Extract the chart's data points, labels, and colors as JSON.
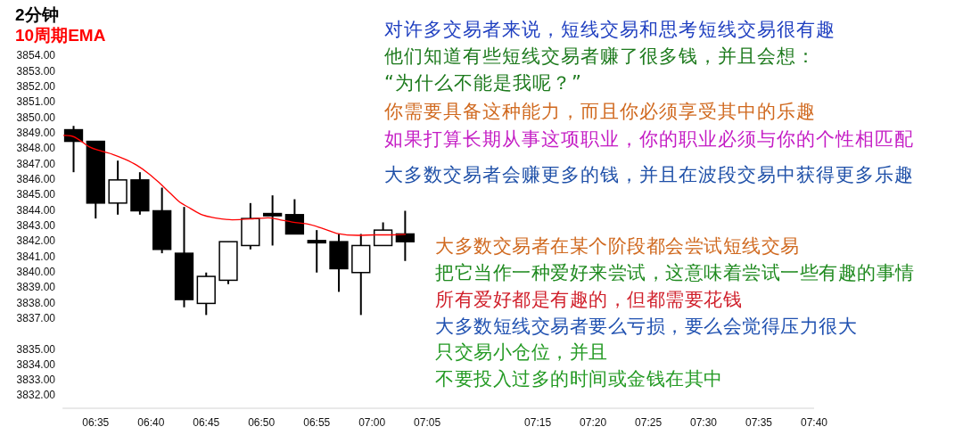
{
  "chart_data": {
    "type": "candlestick",
    "title": "2分钟",
    "x": [
      6.55,
      6.5833,
      6.6167,
      6.65,
      6.6833,
      6.7167,
      6.75,
      6.7833,
      6.8167,
      6.85,
      6.8833,
      6.9167,
      6.95,
      6.9833,
      7.0167,
      7.05
    ],
    "ohlc": [
      [
        3849.25,
        3849.5,
        3846.5,
        3848.5
      ],
      [
        3848.5,
        3848.5,
        3843.5,
        3844.5
      ],
      [
        3844.5,
        3847.25,
        3843.75,
        3846.0
      ],
      [
        3846.0,
        3846.5,
        3843.75,
        3844.0
      ],
      [
        3844.0,
        3845.5,
        3841.25,
        3841.5
      ],
      [
        3841.25,
        3844.25,
        3837.75,
        3838.25
      ],
      [
        3838.0,
        3840.0,
        3837.25,
        3839.75
      ],
      [
        3839.5,
        3842.0,
        3839.25,
        3842.0
      ],
      [
        3841.75,
        3844.5,
        3841.5,
        3843.5
      ],
      [
        3843.75,
        3845.0,
        3841.75,
        3843.75
      ],
      [
        3843.75,
        3844.75,
        3842.5,
        3842.5
      ],
      [
        3842.0,
        3842.75,
        3840.0,
        3842.0
      ],
      [
        3842.0,
        3842.5,
        3838.75,
        3840.25
      ],
      [
        3840.0,
        3842.5,
        3837.25,
        3841.75
      ],
      [
        3841.75,
        3843.25,
        3841.75,
        3842.75
      ],
      [
        3842.5,
        3844.0,
        3840.75,
        3842.0
      ]
    ],
    "series": [
      {
        "type": "line",
        "name": "10周期EMA",
        "color": "#ff0000",
        "x": [
          6.5353,
          6.5465,
          6.5623,
          6.5735,
          6.5915,
          6.6095,
          6.6275,
          6.6453,
          6.6635,
          6.677,
          6.695,
          6.7085,
          6.7263,
          6.7445,
          6.7623,
          6.7893,
          6.8208,
          6.8433,
          6.8613,
          6.8795,
          6.9063,
          6.9288,
          6.9468,
          6.9783,
          7.0053,
          7.0278,
          7.0503
        ],
        "values": [
          3848.88,
          3848.85,
          3848.48,
          3848.15,
          3847.87,
          3847.65,
          3847.34,
          3846.95,
          3846.4,
          3845.9,
          3845.17,
          3844.62,
          3844.15,
          3843.73,
          3843.55,
          3843.42,
          3843.48,
          3843.55,
          3843.42,
          3843.27,
          3843.11,
          3842.81,
          3842.54,
          3842.41,
          3842.44,
          3842.44,
          3842.48
        ]
      }
    ],
    "legend": "top left",
    "xlim": [
      6.5333,
      7.6667
    ],
    "xticks": [
      {
        "value": 6.5833,
        "label": "06:35"
      },
      {
        "value": 6.6667,
        "label": "06:40"
      },
      {
        "value": 6.75,
        "label": "06:45"
      },
      {
        "value": 6.8333,
        "label": "06:50"
      },
      {
        "value": 6.9167,
        "label": "06:55"
      },
      {
        "value": 7.0,
        "label": "07:00"
      },
      {
        "value": 7.0833,
        "label": "07:05"
      },
      {
        "value": 7.25,
        "label": "07:15"
      },
      {
        "value": 7.3333,
        "label": "07:20"
      },
      {
        "value": 7.4167,
        "label": "07:25"
      },
      {
        "value": 7.5,
        "label": "07:30"
      },
      {
        "value": 7.5833,
        "label": "07:35"
      },
      {
        "value": 7.6667,
        "label": "07:40"
      }
    ],
    "ylim": [
      3832,
      3854
    ],
    "yticks": [
      {
        "value": 3854,
        "label": "3854.00"
      },
      {
        "value": 3853,
        "label": "3853.00"
      },
      {
        "value": 3852,
        "label": "3852.00"
      },
      {
        "value": 3851,
        "label": "3851.00"
      },
      {
        "value": 3850,
        "label": "3850.00"
      },
      {
        "value": 3849,
        "label": "3849.00"
      },
      {
        "value": 3848,
        "label": "3848.00"
      },
      {
        "value": 3847,
        "label": "3847.00"
      },
      {
        "value": 3846,
        "label": "3846.00"
      },
      {
        "value": 3845,
        "label": "3845.00"
      },
      {
        "value": 3844,
        "label": "3844.00"
      },
      {
        "value": 3843,
        "label": "3843.00"
      },
      {
        "value": 3842,
        "label": "3842.00"
      },
      {
        "value": 3841,
        "label": "3841.00"
      },
      {
        "value": 3840,
        "label": "3840.00"
      },
      {
        "value": 3839,
        "label": "3839.00"
      },
      {
        "value": 3838,
        "label": "3838.00"
      },
      {
        "value": 3837,
        "label": "3837.00"
      },
      {
        "value": 3835,
        "label": "3835.00"
      },
      {
        "value": 3834,
        "label": "3834.00"
      },
      {
        "value": 3833,
        "label": "3833.00"
      },
      {
        "value": 3832,
        "label": "3832.00"
      }
    ],
    "annotations": [
      "对许多交易者来说，短线交易和思考短线交易很有趣",
      "他们知道有些短线交易者赚了很多钱，并且会想：",
      "“为什么不能是我呢？”",
      "你需要具备这种能力，而且你必须享受其中的乐趣",
      "如果打算长期从事这项职业，你的职业必须与你的个性相匹配",
      "大多数交易者会赚更多的钱，并且在波段交易中获得更多乐趣",
      "大多数交易者在某个阶段都会尝试短线交易",
      "把它当作一种爱好来尝试，这意味着尝试一些有趣的事情",
      "所有爱好都是有趣的，但都需要花钱",
      "大多数短线交易者要么亏损，要么会觉得压力很大",
      "只交易小仓位，并且",
      "不要投入过多的时间或金钱在其中"
    ]
  }
}
